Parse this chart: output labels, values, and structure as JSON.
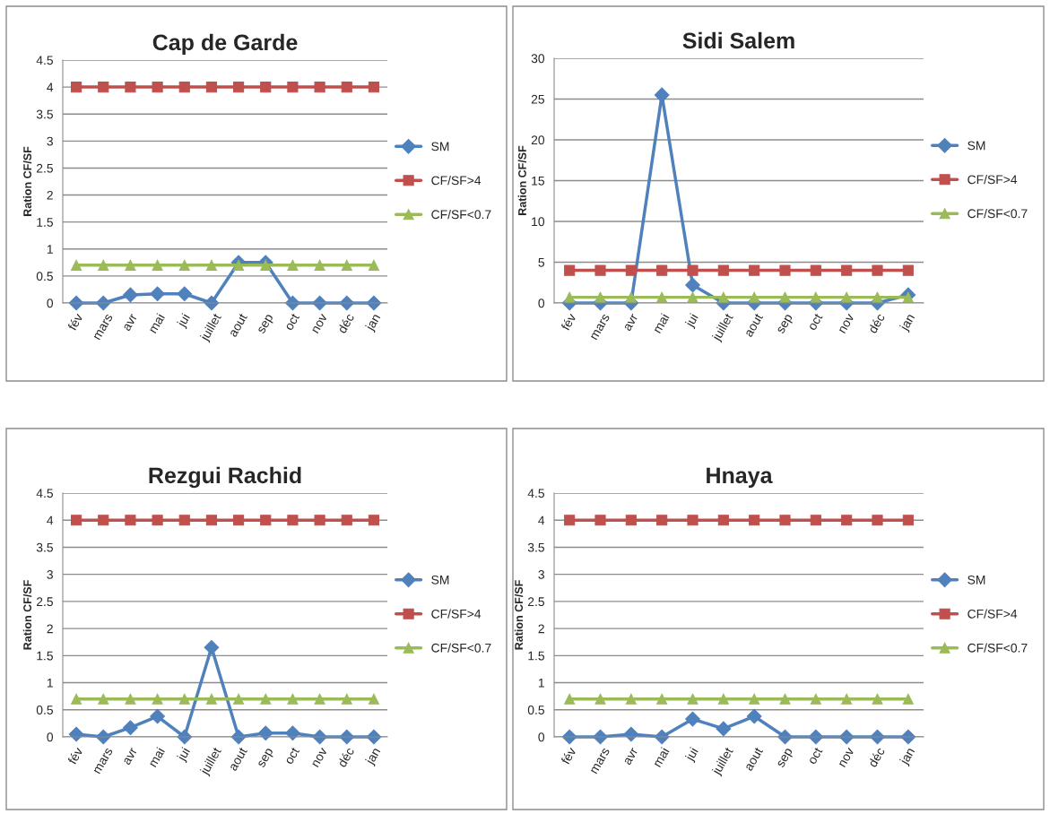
{
  "chart_data": [
    {
      "type": "line",
      "title": "Cap de Garde",
      "ylabel": "Ration CF/SF",
      "categories": [
        "fév",
        "mars",
        "avr",
        "mai",
        "jui",
        "juillet",
        "aout",
        "sep",
        "oct",
        "nov",
        "déc",
        "jan"
      ],
      "ylim": [
        0,
        4.5
      ],
      "yticks": [
        0,
        0.5,
        1,
        1.5,
        2,
        2.5,
        3,
        3.5,
        4,
        4.5
      ],
      "grid": "y",
      "legend": "right",
      "series": [
        {
          "name": "SM",
          "color": "#4f81bd",
          "marker": "diamond",
          "values": [
            0,
            0,
            0.15,
            0.17,
            0.17,
            0,
            0.75,
            0.75,
            0,
            0,
            0,
            0
          ]
        },
        {
          "name": "CF/SF>4",
          "color": "#c0504d",
          "marker": "square",
          "values": [
            4,
            4,
            4,
            4,
            4,
            4,
            4,
            4,
            4,
            4,
            4,
            4
          ]
        },
        {
          "name": "CF/SF<0.7",
          "color": "#9bbb59",
          "marker": "triangle",
          "values": [
            0.7,
            0.7,
            0.7,
            0.7,
            0.7,
            0.7,
            0.7,
            0.7,
            0.7,
            0.7,
            0.7,
            0.7
          ]
        }
      ]
    },
    {
      "type": "line",
      "title": "Sidi Salem",
      "ylabel": "Ration CF/SF",
      "categories": [
        "fév",
        "mars",
        "avr",
        "mai",
        "jui",
        "juillet",
        "aout",
        "sep",
        "oct",
        "nov",
        "déc",
        "jan"
      ],
      "ylim": [
        0,
        30
      ],
      "yticks": [
        0,
        5,
        10,
        15,
        20,
        25,
        30
      ],
      "grid": "y",
      "legend": "right",
      "series": [
        {
          "name": "SM",
          "color": "#4f81bd",
          "marker": "diamond",
          "values": [
            0,
            0,
            0,
            25.5,
            2.2,
            0,
            0,
            0,
            0,
            0,
            0,
            1
          ]
        },
        {
          "name": "CF/SF>4",
          "color": "#c0504d",
          "marker": "square",
          "values": [
            4,
            4,
            4,
            4,
            4,
            4,
            4,
            4,
            4,
            4,
            4,
            4
          ]
        },
        {
          "name": "CF/SF<0.7",
          "color": "#9bbb59",
          "marker": "triangle",
          "values": [
            0.7,
            0.7,
            0.7,
            0.7,
            0.7,
            0.7,
            0.7,
            0.7,
            0.7,
            0.7,
            0.7,
            0.7
          ]
        }
      ]
    },
    {
      "type": "line",
      "title": "Rezgui Rachid",
      "ylabel": "Ration CF/SF",
      "categories": [
        "fév",
        "mars",
        "avr",
        "mai",
        "jui",
        "juillet",
        "aout",
        "sep",
        "oct",
        "nov",
        "déc",
        "jan"
      ],
      "ylim": [
        0,
        4.5
      ],
      "yticks": [
        0,
        0.5,
        1,
        1.5,
        2,
        2.5,
        3,
        3.5,
        4,
        4.5
      ],
      "grid": "y",
      "legend": "right",
      "series": [
        {
          "name": "SM",
          "color": "#4f81bd",
          "marker": "diamond",
          "values": [
            0.05,
            0,
            0.17,
            0.38,
            0,
            1.65,
            0,
            0.07,
            0.07,
            0,
            0,
            0
          ]
        },
        {
          "name": "CF/SF>4",
          "color": "#c0504d",
          "marker": "square",
          "values": [
            4,
            4,
            4,
            4,
            4,
            4,
            4,
            4,
            4,
            4,
            4,
            4
          ]
        },
        {
          "name": "CF/SF<0.7",
          "color": "#9bbb59",
          "marker": "triangle",
          "values": [
            0.7,
            0.7,
            0.7,
            0.7,
            0.7,
            0.7,
            0.7,
            0.7,
            0.7,
            0.7,
            0.7,
            0.7
          ]
        }
      ]
    },
    {
      "type": "line",
      "title": "Hnaya",
      "ylabel": "Ration CF/SF",
      "categories": [
        "fév",
        "mars",
        "avr",
        "mai",
        "jui",
        "juillet",
        "aout",
        "sep",
        "oct",
        "nov",
        "déc",
        "jan"
      ],
      "ylim": [
        0,
        4.5
      ],
      "yticks": [
        0,
        0.5,
        1,
        1.5,
        2,
        2.5,
        3,
        3.5,
        4,
        4.5
      ],
      "grid": "y",
      "legend": "right",
      "series": [
        {
          "name": "SM",
          "color": "#4f81bd",
          "marker": "diamond",
          "values": [
            0,
            0,
            0.05,
            0,
            0.33,
            0.15,
            0.38,
            0,
            0,
            0,
            0,
            0
          ]
        },
        {
          "name": "CF/SF>4",
          "color": "#c0504d",
          "marker": "square",
          "values": [
            4,
            4,
            4,
            4,
            4,
            4,
            4,
            4,
            4,
            4,
            4,
            4
          ]
        },
        {
          "name": "CF/SF<0.7",
          "color": "#9bbb59",
          "marker": "triangle",
          "values": [
            0.7,
            0.7,
            0.7,
            0.7,
            0.7,
            0.7,
            0.7,
            0.7,
            0.7,
            0.7,
            0.7,
            0.7
          ]
        }
      ]
    }
  ]
}
